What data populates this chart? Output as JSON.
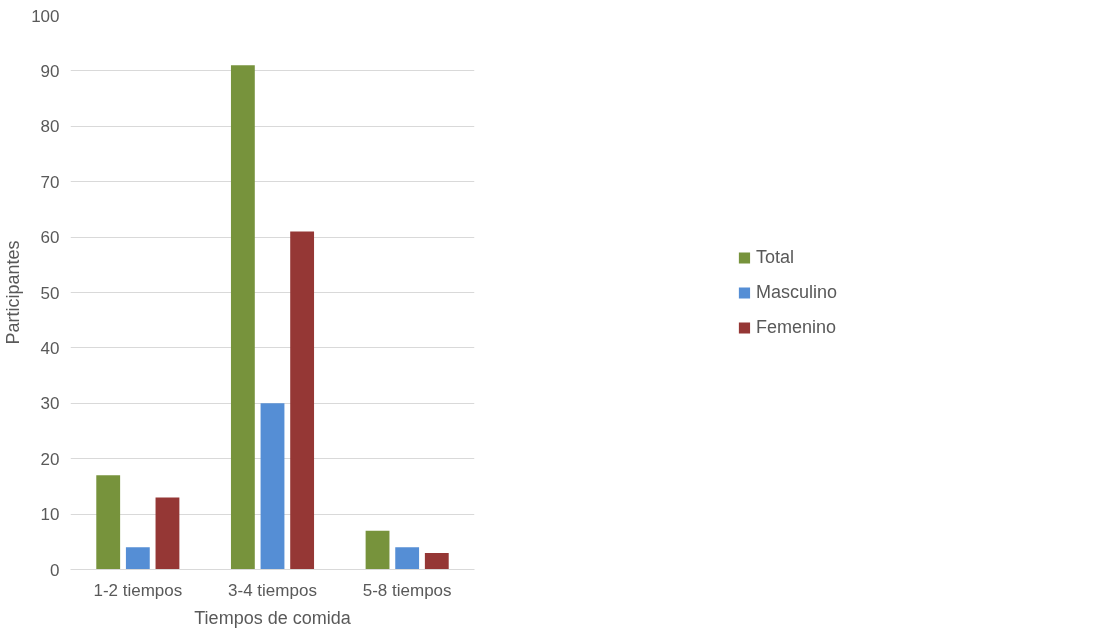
{
  "chart_data": {
    "type": "bar",
    "xlabel": "Tiempos de comida",
    "ylabel": "Participantes",
    "categories": [
      "1-2 tiempos",
      "3-4 tiempos",
      "5-8 tiempos"
    ],
    "series": [
      {
        "name": "Total",
        "color": "#77933c",
        "values": [
          17,
          91,
          7
        ]
      },
      {
        "name": "Masculino",
        "color": "#558ed5",
        "values": [
          4,
          30,
          4
        ]
      },
      {
        "name": "Femenino",
        "color": "#953735",
        "values": [
          13,
          61,
          3
        ]
      }
    ],
    "ylim": [
      0,
      100
    ],
    "yticks": [
      0,
      10,
      20,
      30,
      40,
      50,
      60,
      70,
      80,
      90,
      100
    ],
    "grid": "y",
    "legend": "right"
  }
}
